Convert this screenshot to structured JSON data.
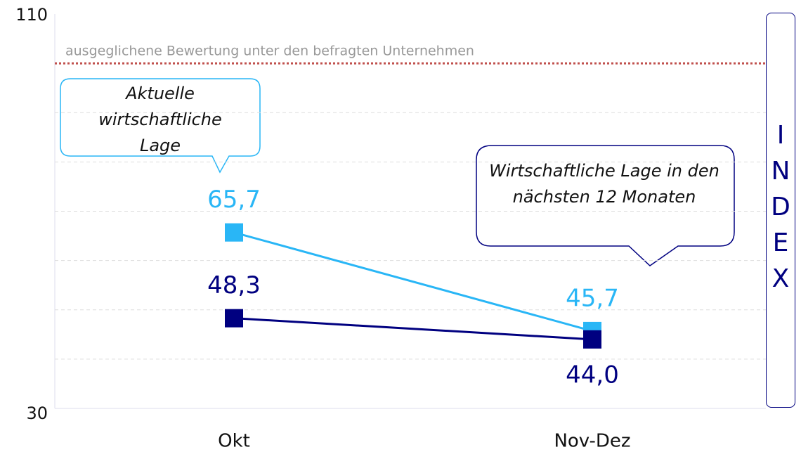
{
  "chart_data": {
    "type": "line",
    "categories": [
      "Okt",
      "Nov-Dez"
    ],
    "series": [
      {
        "name": "Aktuelle wirtschaftliche Lage",
        "color": "#29b6f6",
        "values": [
          65.7,
          45.7
        ],
        "value_labels": [
          "65,7",
          "45,7"
        ]
      },
      {
        "name": "Wirtschaftliche Lage in den nächsten 12 Monaten",
        "color": "#000080",
        "values": [
          48.3,
          44.0
        ],
        "value_labels": [
          "48,3",
          "44,0"
        ]
      }
    ],
    "ylim": [
      30,
      110
    ],
    "yticks": [
      30,
      110
    ],
    "gridlines": [
      40,
      50,
      60,
      70,
      80,
      90
    ],
    "reference_line": {
      "value": 100,
      "label": "ausgeglichene Bewertung unter den befragten Unternehmen",
      "color": "#c0504d"
    },
    "y_axis_label": "INDEX"
  }
}
